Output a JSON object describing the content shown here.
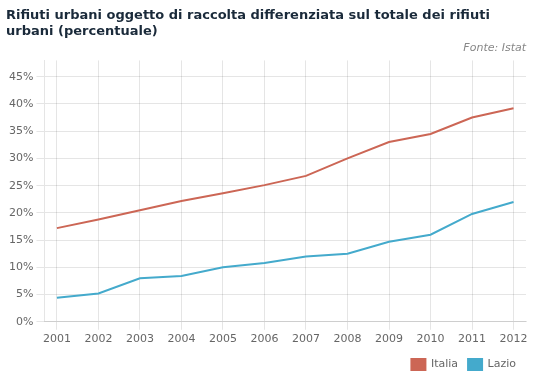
{
  "chart_data": {
    "type": "line",
    "title": "Rifiuti urbani oggetto di raccolta differenziata sul totale dei rifiuti urbani (percentuale)",
    "subtitle": "Fonte: Istat",
    "x": [
      2001,
      2002,
      2003,
      2004,
      2005,
      2006,
      2007,
      2008,
      2009,
      2010,
      2011,
      2012
    ],
    "series": [
      {
        "name": "Italia",
        "color": "#cc6655",
        "values": [
          0.172,
          0.188,
          0.205,
          0.222,
          0.236,
          0.251,
          0.268,
          0.3,
          0.33,
          0.345,
          0.375,
          0.392
        ]
      },
      {
        "name": "Lazio",
        "color": "#44aacc",
        "values": [
          0.044,
          0.052,
          0.08,
          0.084,
          0.1,
          0.108,
          0.12,
          0.125,
          0.147,
          0.16,
          0.198,
          0.22
        ]
      }
    ],
    "xlim": [
      2000.7,
      2012.3
    ],
    "xticks": [
      2001,
      2002,
      2003,
      2004,
      2005,
      2006,
      2007,
      2008,
      2009,
      2010,
      2011,
      2012
    ],
    "ylim": [
      0.0,
      0.48
    ],
    "yticks": [
      {
        "value": 0.0,
        "label": "0%"
      },
      {
        "value": 0.05,
        "label": "5%"
      },
      {
        "value": 0.1,
        "label": "10%"
      },
      {
        "value": 0.15,
        "label": "15%"
      },
      {
        "value": 0.2,
        "label": "20%"
      },
      {
        "value": 0.25,
        "label": "25%"
      },
      {
        "value": 0.3,
        "label": "30%"
      },
      {
        "value": 0.35,
        "label": "35%"
      },
      {
        "value": 0.4,
        "label": "40%"
      },
      {
        "value": 0.45,
        "label": "45%"
      }
    ],
    "grid": true,
    "legend": "lower right"
  }
}
